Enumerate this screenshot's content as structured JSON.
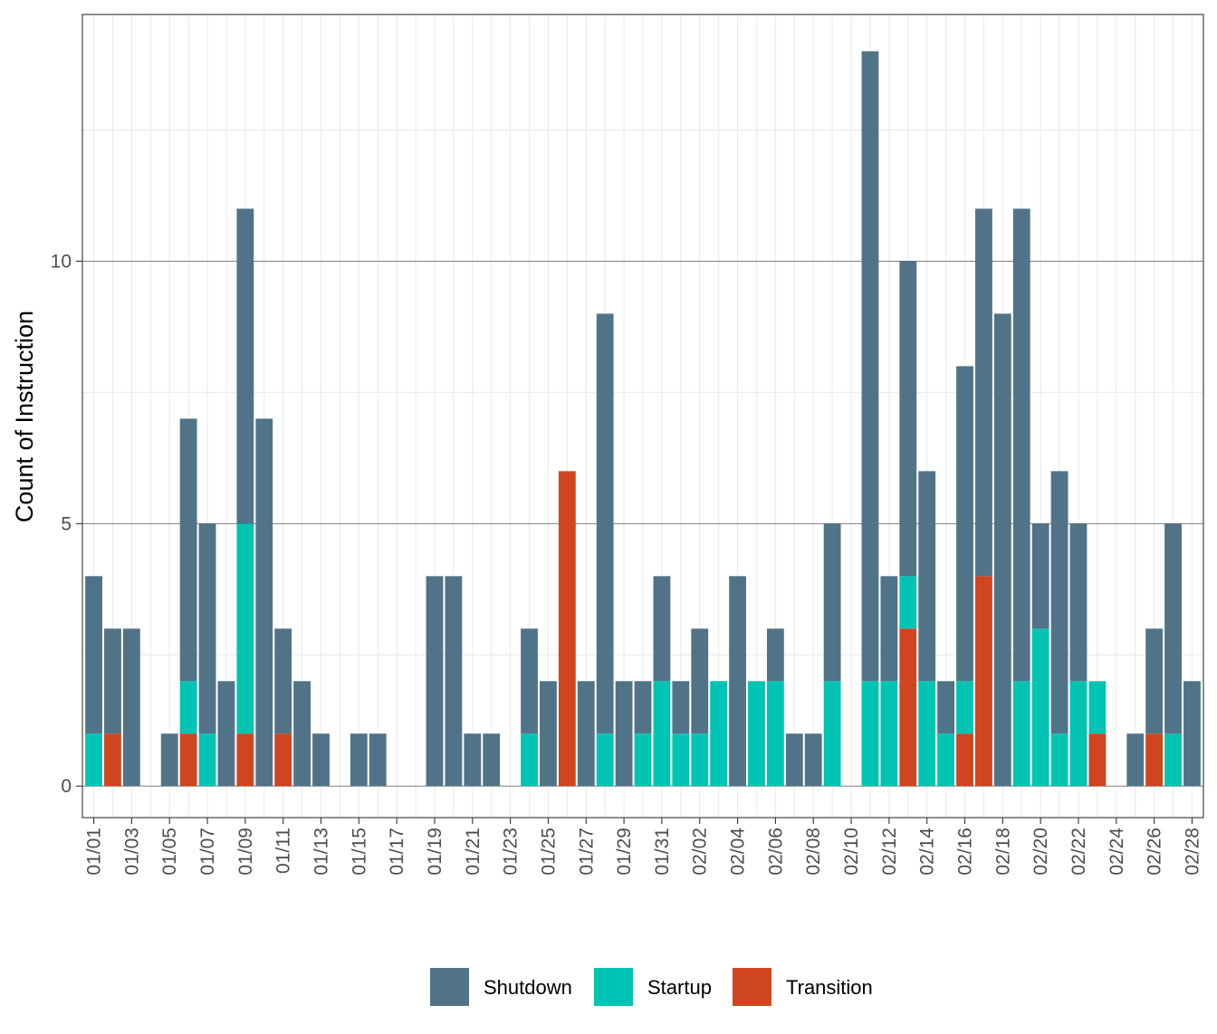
{
  "chart_data": {
    "type": "bar",
    "stacked": true,
    "title": "",
    "xlabel": "",
    "ylabel": "Count of Instruction",
    "ylim": [
      -0.6,
      14.7
    ],
    "yticks": [
      0,
      5,
      10
    ],
    "grid": true,
    "legend_position": "bottom",
    "dates": [
      "01/01",
      "01/02",
      "01/03",
      "01/04",
      "01/05",
      "01/06",
      "01/07",
      "01/08",
      "01/09",
      "01/10",
      "01/11",
      "01/12",
      "01/13",
      "01/14",
      "01/15",
      "01/16",
      "01/17",
      "01/18",
      "01/19",
      "01/20",
      "01/21",
      "01/22",
      "01/23",
      "01/24",
      "01/25",
      "01/26",
      "01/27",
      "01/28",
      "01/29",
      "01/30",
      "01/31",
      "02/01",
      "02/02",
      "02/03",
      "02/04",
      "02/05",
      "02/06",
      "02/07",
      "02/08",
      "02/09",
      "02/10",
      "02/11",
      "02/12",
      "02/13",
      "02/14",
      "02/15",
      "02/16",
      "02/17",
      "02/18",
      "02/19",
      "02/20",
      "02/21",
      "02/22",
      "02/23",
      "02/24",
      "02/25",
      "02/26",
      "02/27",
      "02/28"
    ],
    "tick_labels": [
      "01/01",
      "01/03",
      "01/05",
      "01/07",
      "01/09",
      "01/11",
      "01/13",
      "01/15",
      "01/17",
      "01/19",
      "01/21",
      "01/23",
      "01/25",
      "01/27",
      "01/29",
      "01/31",
      "02/02",
      "02/04",
      "02/06",
      "02/08",
      "02/10",
      "02/12",
      "02/14",
      "02/16",
      "02/18",
      "02/20",
      "02/22",
      "02/24",
      "02/26",
      "02/28"
    ],
    "series": [
      {
        "name": "Transition",
        "color": "#cf4520",
        "values": [
          0,
          1,
          0,
          0,
          0,
          1,
          0,
          0,
          1,
          0,
          1,
          0,
          0,
          0,
          0,
          0,
          0,
          0,
          0,
          0,
          0,
          0,
          0,
          0,
          0,
          6,
          0,
          0,
          0,
          0,
          0,
          0,
          0,
          0,
          0,
          0,
          0,
          0,
          0,
          0,
          0,
          0,
          0,
          3,
          0,
          0,
          1,
          4,
          0,
          0,
          0,
          0,
          0,
          1,
          0,
          0,
          1,
          0,
          0
        ]
      },
      {
        "name": "Startup",
        "color": "#00c4b3",
        "values": [
          1,
          0,
          0,
          0,
          0,
          1,
          1,
          0,
          4,
          0,
          0,
          0,
          0,
          0,
          0,
          0,
          0,
          0,
          0,
          0,
          0,
          0,
          0,
          1,
          0,
          0,
          0,
          1,
          0,
          1,
          2,
          1,
          1,
          2,
          0,
          2,
          2,
          0,
          0,
          2,
          0,
          2,
          2,
          1,
          2,
          1,
          1,
          0,
          0,
          2,
          3,
          1,
          2,
          1,
          0,
          0,
          0,
          1,
          0
        ]
      },
      {
        "name": "Shutdown",
        "color": "#517388",
        "values": [
          3,
          2,
          3,
          0,
          1,
          5,
          4,
          2,
          6,
          7,
          2,
          2,
          1,
          0,
          1,
          1,
          0,
          0,
          4,
          4,
          1,
          1,
          0,
          2,
          2,
          0,
          2,
          8,
          2,
          1,
          2,
          1,
          2,
          0,
          4,
          0,
          1,
          1,
          1,
          3,
          0,
          12,
          2,
          6,
          4,
          1,
          6,
          7,
          9,
          9,
          2,
          5,
          3,
          0,
          0,
          1,
          2,
          4,
          2
        ]
      }
    ]
  },
  "legend": {
    "items": [
      {
        "label": "Shutdown",
        "color": "#517388"
      },
      {
        "label": "Startup",
        "color": "#00c4b3"
      },
      {
        "label": "Transition",
        "color": "#cf4520"
      }
    ]
  }
}
